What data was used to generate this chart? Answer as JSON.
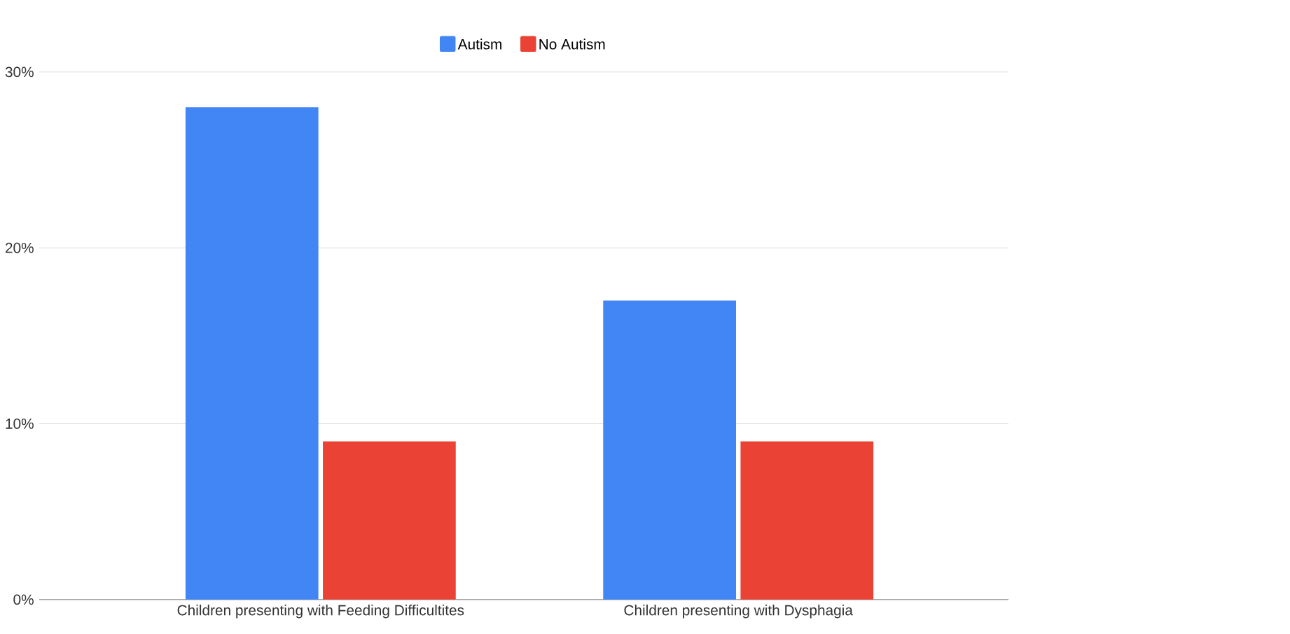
{
  "chart_data": {
    "type": "bar",
    "categories": [
      "Children presenting with Feeding Difficultites",
      "Children presenting with Dysphagia"
    ],
    "series": [
      {
        "name": "Autism",
        "color": "#4285f4",
        "values": [
          28,
          17
        ]
      },
      {
        "name": "No Autism",
        "color": "#ea4335",
        "values": [
          9,
          9
        ]
      }
    ],
    "ylim": [
      0,
      30
    ],
    "yticks": [
      {
        "value": 0,
        "label": "0%"
      },
      {
        "value": 10,
        "label": "10%"
      },
      {
        "value": 20,
        "label": "20%"
      },
      {
        "value": 30,
        "label": "30%"
      }
    ],
    "grid": "y",
    "legend": "top"
  }
}
